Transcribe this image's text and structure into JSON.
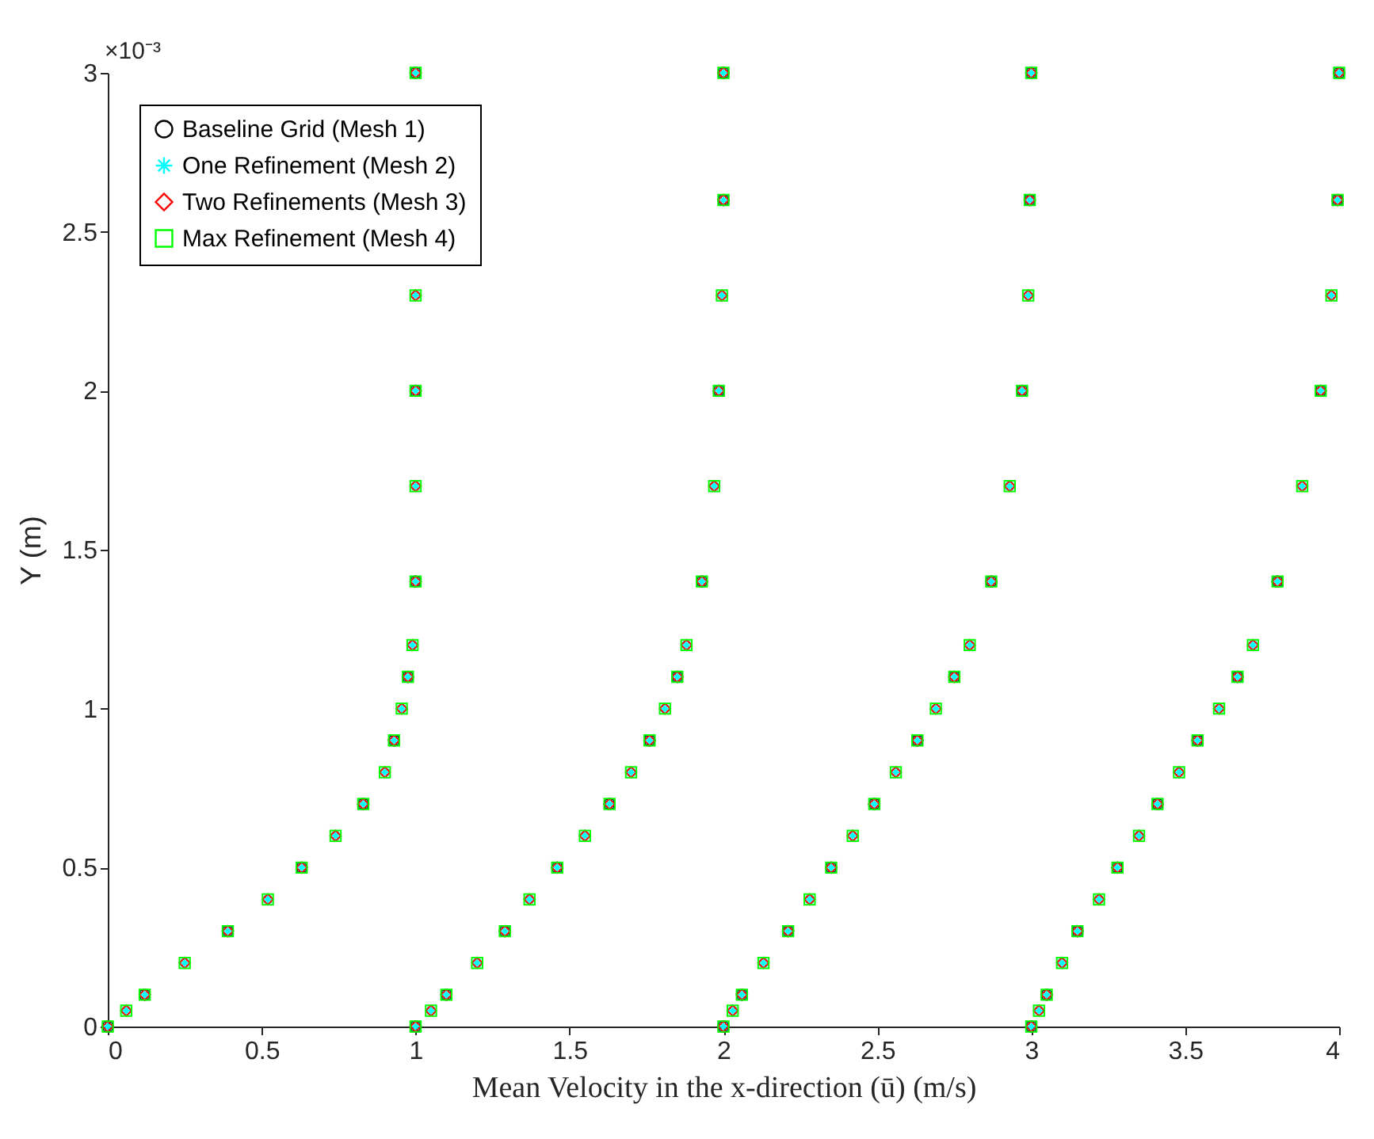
{
  "chart_data": {
    "type": "scatter",
    "xlabel": "Mean Velocity in the x-direction (ū) (m/s)",
    "ylabel": "Y (m)",
    "annotations": [
      "×10⁻³"
    ],
    "xlim": [
      0,
      4
    ],
    "xticks": [
      0,
      0.5,
      1,
      1.5,
      2,
      2.5,
      3,
      3.5,
      4
    ],
    "ylim": [
      0,
      3
    ],
    "yticks": [
      0,
      0.5,
      1,
      1.5,
      2,
      2.5,
      3
    ],
    "grid": false,
    "legend": "top left",
    "series": [
      {
        "name": "Baseline Grid (Mesh 1)",
        "color": "#000000",
        "marker": "circle",
        "x": [
          0,
          0.12,
          0.39,
          0.63,
          0.83,
          0.93,
          0.975,
          1,
          1,
          1,
          1,
          1.1,
          1.29,
          1.46,
          1.63,
          1.76,
          1.85,
          1.93,
          1.985,
          2,
          2,
          2,
          2.06,
          2.21,
          2.35,
          2.49,
          2.63,
          2.75,
          2.87,
          2.97,
          2.995,
          3,
          3,
          3.05,
          3.15,
          3.28,
          3.41,
          3.54,
          3.67,
          3.8,
          3.94,
          3.995,
          4
        ],
        "values": [
          0,
          0.1,
          0.3,
          0.5,
          0.7,
          0.9,
          1.1,
          1.4,
          2,
          3,
          0,
          0.1,
          0.3,
          0.5,
          0.7,
          0.9,
          1.1,
          1.4,
          2,
          2.6,
          3,
          0,
          0.1,
          0.3,
          0.5,
          0.7,
          0.9,
          1.1,
          1.4,
          2,
          2.6,
          3,
          0,
          0.1,
          0.3,
          0.5,
          0.7,
          0.9,
          1.1,
          1.4,
          2,
          2.6,
          3
        ]
      },
      {
        "name": "One Refinement (Mesh 2)",
        "color": "#00ffff",
        "marker": "cross",
        "x": [
          0,
          0.06,
          0.12,
          0.25,
          0.39,
          0.52,
          0.63,
          0.74,
          0.83,
          0.9,
          0.93,
          0.955,
          0.975,
          0.99,
          1,
          1,
          1,
          1,
          1,
          1,
          1.05,
          1.1,
          1.2,
          1.29,
          1.37,
          1.46,
          1.55,
          1.63,
          1.7,
          1.76,
          1.81,
          1.85,
          1.88,
          1.93,
          1.97,
          1.985,
          1.995,
          2,
          2,
          2,
          2.03,
          2.06,
          2.13,
          2.21,
          2.28,
          2.35,
          2.42,
          2.49,
          2.56,
          2.63,
          2.69,
          2.75,
          2.8,
          2.87,
          2.93,
          2.97,
          2.99,
          2.995,
          3,
          3,
          3.025,
          3.05,
          3.1,
          3.15,
          3.22,
          3.28,
          3.35,
          3.41,
          3.48,
          3.54,
          3.61,
          3.67,
          3.72,
          3.8,
          3.88,
          3.94,
          3.975,
          3.995,
          4
        ],
        "values": [
          0,
          0.05,
          0.1,
          0.2,
          0.3,
          0.4,
          0.5,
          0.6,
          0.7,
          0.8,
          0.9,
          1,
          1.1,
          1.2,
          1.4,
          1.7,
          2,
          2.3,
          3,
          0,
          0.05,
          0.1,
          0.2,
          0.3,
          0.4,
          0.5,
          0.6,
          0.7,
          0.8,
          0.9,
          1,
          1.1,
          1.2,
          1.4,
          1.7,
          2,
          2.3,
          2.6,
          3,
          0,
          0.05,
          0.1,
          0.2,
          0.3,
          0.4,
          0.5,
          0.6,
          0.7,
          0.8,
          0.9,
          1,
          1.1,
          1.2,
          1.4,
          1.7,
          2,
          2.3,
          2.6,
          3,
          0,
          0.05,
          0.1,
          0.2,
          0.3,
          0.4,
          0.5,
          0.6,
          0.7,
          0.8,
          0.9,
          1,
          1.1,
          1.2,
          1.4,
          1.7,
          2,
          2.3,
          2.6,
          3
        ]
      },
      {
        "name": "Two Refinements (Mesh 3)",
        "color": "#ff0000",
        "marker": "diamond",
        "x": [
          0,
          0.06,
          0.12,
          0.25,
          0.39,
          0.52,
          0.63,
          0.74,
          0.83,
          0.9,
          0.93,
          0.955,
          0.975,
          0.99,
          1,
          1,
          1,
          1,
          1,
          1,
          1.05,
          1.1,
          1.2,
          1.29,
          1.37,
          1.46,
          1.55,
          1.63,
          1.7,
          1.76,
          1.81,
          1.85,
          1.88,
          1.93,
          1.97,
          1.985,
          1.995,
          2,
          2,
          2,
          2.03,
          2.06,
          2.13,
          2.21,
          2.28,
          2.35,
          2.42,
          2.49,
          2.56,
          2.63,
          2.69,
          2.75,
          2.8,
          2.87,
          2.93,
          2.97,
          2.99,
          2.995,
          3,
          3,
          3.025,
          3.05,
          3.1,
          3.15,
          3.22,
          3.28,
          3.35,
          3.41,
          3.48,
          3.54,
          3.61,
          3.67,
          3.72,
          3.8,
          3.88,
          3.94,
          3.975,
          3.995,
          4
        ],
        "values": [
          0,
          0.05,
          0.1,
          0.2,
          0.3,
          0.4,
          0.5,
          0.6,
          0.7,
          0.8,
          0.9,
          1,
          1.1,
          1.2,
          1.4,
          1.7,
          2,
          2.3,
          3,
          0,
          0.05,
          0.1,
          0.2,
          0.3,
          0.4,
          0.5,
          0.6,
          0.7,
          0.8,
          0.9,
          1,
          1.1,
          1.2,
          1.4,
          1.7,
          2,
          2.3,
          2.6,
          3,
          0,
          0.05,
          0.1,
          0.2,
          0.3,
          0.4,
          0.5,
          0.6,
          0.7,
          0.8,
          0.9,
          1,
          1.1,
          1.2,
          1.4,
          1.7,
          2,
          2.3,
          2.6,
          3,
          0,
          0.05,
          0.1,
          0.2,
          0.3,
          0.4,
          0.5,
          0.6,
          0.7,
          0.8,
          0.9,
          1,
          1.1,
          1.2,
          1.4,
          1.7,
          2,
          2.3,
          2.6,
          3
        ]
      },
      {
        "name": "Max Refinement (Mesh 4)",
        "color": "#00ff00",
        "marker": "square",
        "x": [
          0,
          0.06,
          0.12,
          0.25,
          0.39,
          0.52,
          0.63,
          0.74,
          0.83,
          0.9,
          0.93,
          0.955,
          0.975,
          0.99,
          1,
          1,
          1,
          1,
          1,
          1,
          1.05,
          1.1,
          1.2,
          1.29,
          1.37,
          1.46,
          1.55,
          1.63,
          1.7,
          1.76,
          1.81,
          1.85,
          1.88,
          1.93,
          1.97,
          1.985,
          1.995,
          2,
          2,
          2,
          2.03,
          2.06,
          2.13,
          2.21,
          2.28,
          2.35,
          2.42,
          2.49,
          2.56,
          2.63,
          2.69,
          2.75,
          2.8,
          2.87,
          2.93,
          2.97,
          2.99,
          2.995,
          3,
          3,
          3.025,
          3.05,
          3.1,
          3.15,
          3.22,
          3.28,
          3.35,
          3.41,
          3.48,
          3.54,
          3.61,
          3.67,
          3.72,
          3.8,
          3.88,
          3.94,
          3.975,
          3.995,
          4
        ],
        "values": [
          0,
          0.05,
          0.1,
          0.2,
          0.3,
          0.4,
          0.5,
          0.6,
          0.7,
          0.8,
          0.9,
          1,
          1.1,
          1.2,
          1.4,
          1.7,
          2,
          2.3,
          3,
          0,
          0.05,
          0.1,
          0.2,
          0.3,
          0.4,
          0.5,
          0.6,
          0.7,
          0.8,
          0.9,
          1,
          1.1,
          1.2,
          1.4,
          1.7,
          2,
          2.3,
          2.6,
          3,
          0,
          0.05,
          0.1,
          0.2,
          0.3,
          0.4,
          0.5,
          0.6,
          0.7,
          0.8,
          0.9,
          1,
          1.1,
          1.2,
          1.4,
          1.7,
          2,
          2.3,
          2.6,
          3,
          0,
          0.05,
          0.1,
          0.2,
          0.3,
          0.4,
          0.5,
          0.6,
          0.7,
          0.8,
          0.9,
          1,
          1.1,
          1.2,
          1.4,
          1.7,
          2,
          2.3,
          2.6,
          3
        ]
      }
    ]
  }
}
